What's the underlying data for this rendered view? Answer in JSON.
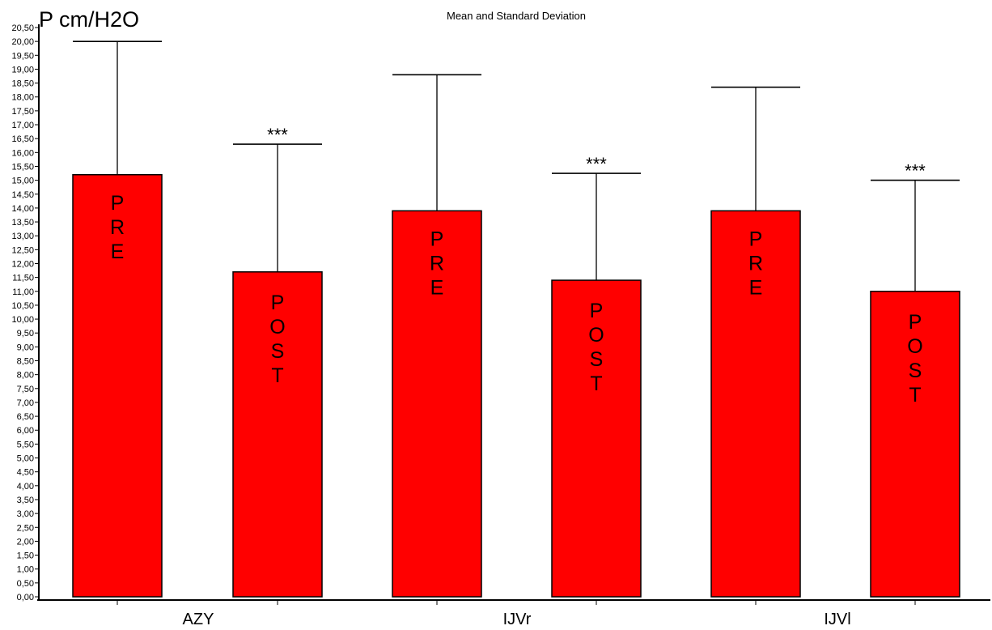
{
  "chart_data": {
    "type": "bar",
    "title": "Mean and Standard Deviation",
    "ylabel": "P cm/H2O",
    "xlabel": "",
    "ylim": [
      0,
      20.5
    ],
    "ytick_step": 0.5,
    "decimal_separator": ",",
    "categories": [
      "AZY",
      "IJVr",
      "IJVl"
    ],
    "bars": [
      {
        "group": "AZY",
        "label": "PRE",
        "mean": 15.2,
        "sd_upper": 20.0,
        "significance": ""
      },
      {
        "group": "AZY",
        "label": "POST",
        "mean": 11.7,
        "sd_upper": 16.3,
        "significance": "***"
      },
      {
        "group": "IJVr",
        "label": "PRE",
        "mean": 13.9,
        "sd_upper": 18.8,
        "significance": ""
      },
      {
        "group": "IJVr",
        "label": "POST",
        "mean": 11.4,
        "sd_upper": 15.25,
        "significance": "***"
      },
      {
        "group": "IJVl",
        "label": "PRE",
        "mean": 13.9,
        "sd_upper": 18.35,
        "significance": ""
      },
      {
        "group": "IJVl",
        "label": "POST",
        "mean": 11.0,
        "sd_upper": 15.0,
        "significance": "***"
      }
    ],
    "colors": {
      "bar_fill": "#ff0000",
      "bar_stroke": "#000000",
      "axis": "#000000"
    },
    "grid": false,
    "legend": "none"
  }
}
